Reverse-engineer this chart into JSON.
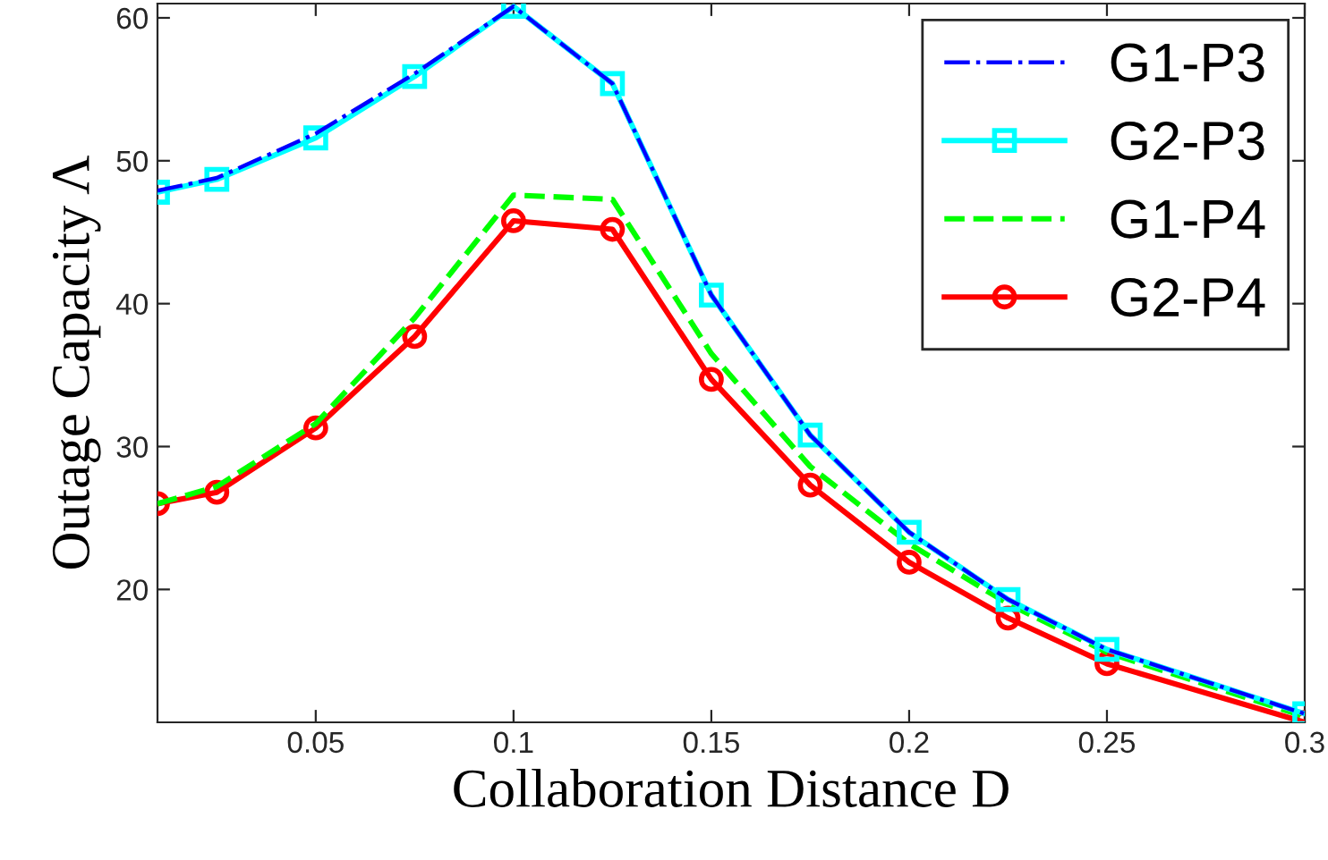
{
  "chart_data": {
    "type": "line",
    "xlabel": "Collaboration Distance D",
    "ylabel": "Outage Capacity Λ",
    "x": [
      0.01,
      0.025,
      0.05,
      0.075,
      0.1,
      0.125,
      0.15,
      0.175,
      0.2,
      0.225,
      0.25,
      0.3
    ],
    "series": [
      {
        "name": "G1-P3",
        "color": "#0000ff",
        "line_style": "dashdot",
        "marker": "none",
        "values": [
          47.9,
          48.8,
          51.9,
          56.1,
          60.8,
          55.4,
          40.6,
          30.8,
          24.0,
          19.3,
          15.8,
          11.3
        ]
      },
      {
        "name": "G2-P3",
        "color": "#00ffff",
        "line_style": "solid",
        "marker": "square",
        "values": [
          47.8,
          48.7,
          51.6,
          55.9,
          60.8,
          55.4,
          40.6,
          30.8,
          24.0,
          19.3,
          15.8,
          11.3
        ]
      },
      {
        "name": "G1-P4",
        "color": "#00ff00",
        "line_style": "dashed",
        "marker": "none",
        "values": [
          26.0,
          27.2,
          31.6,
          39.0,
          47.6,
          47.3,
          36.5,
          28.6,
          23.2,
          19.0,
          15.6,
          11.1
        ]
      },
      {
        "name": "G2-P4",
        "color": "#ff0000",
        "line_style": "solid",
        "marker": "circle",
        "values": [
          26.0,
          26.8,
          31.3,
          37.7,
          45.8,
          45.2,
          34.7,
          27.3,
          21.9,
          18.0,
          14.8,
          10.7
        ]
      }
    ],
    "xlim": [
      0.01,
      0.3
    ],
    "ylim": [
      10.7,
      61
    ],
    "xticks": [
      0.05,
      0.1,
      0.15,
      0.2,
      0.25,
      0.3
    ],
    "yticks": [
      20,
      30,
      40,
      50,
      60
    ],
    "grid": false,
    "legend": "top right"
  }
}
